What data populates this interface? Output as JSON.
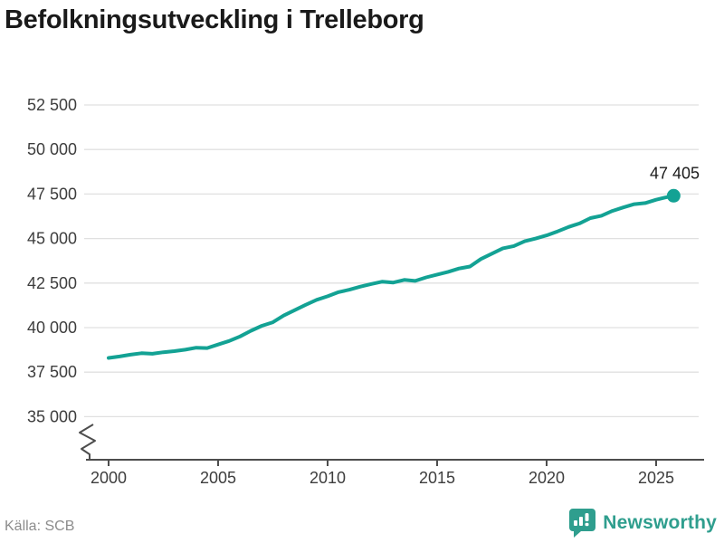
{
  "title": "Befolkningsutveckling i Trelleborg",
  "source": "Källa: SCB",
  "branding": {
    "name": "Newsworthy"
  },
  "colors": {
    "line": "#13a294",
    "grid": "#e0e0e0",
    "axis": "#4d4d4d",
    "tick_label": "#3d3d3d",
    "title": "#1a1a1a",
    "source": "#8c8c8c",
    "brand": "#2f9e8e",
    "end_label": "#1a1a1a"
  },
  "chart_data": {
    "type": "line",
    "title": "Befolkningsutveckling i Trelleborg",
    "xlabel": "",
    "ylabel": "",
    "grid": "horizontal",
    "legend": "none",
    "axis_break_bottom_left": true,
    "xlim": [
      1999.5,
      2026.5
    ],
    "ylim": [
      35000,
      52500
    ],
    "x_ticks": [
      2000,
      2005,
      2010,
      2015,
      2020,
      2025
    ],
    "x_tick_labels": [
      "2000",
      "2005",
      "2010",
      "2015",
      "2020",
      "2025"
    ],
    "y_ticks": [
      52500,
      50000,
      47500,
      45000,
      42500,
      40000,
      37500,
      35000
    ],
    "y_tick_labels": [
      "52 500",
      "50 000",
      "47 500",
      "45 000",
      "42 500",
      "40 000",
      "37 500",
      "35 000"
    ],
    "end_label": "47 405",
    "end_value": 47405,
    "series": [
      {
        "name": "Befolkning",
        "points": [
          [
            2000,
            38300
          ],
          [
            2000.5,
            38380
          ],
          [
            2001,
            38480
          ],
          [
            2001.5,
            38560
          ],
          [
            2002,
            38530
          ],
          [
            2002.5,
            38620
          ],
          [
            2003,
            38680
          ],
          [
            2003.5,
            38760
          ],
          [
            2004,
            38870
          ],
          [
            2004.5,
            38850
          ],
          [
            2005,
            39050
          ],
          [
            2005.5,
            39250
          ],
          [
            2006,
            39500
          ],
          [
            2006.5,
            39820
          ],
          [
            2007,
            40100
          ],
          [
            2007.5,
            40300
          ],
          [
            2008,
            40680
          ],
          [
            2008.5,
            40980
          ],
          [
            2009,
            41280
          ],
          [
            2009.5,
            41560
          ],
          [
            2010,
            41760
          ],
          [
            2010.5,
            41990
          ],
          [
            2011,
            42130
          ],
          [
            2011.5,
            42300
          ],
          [
            2012,
            42450
          ],
          [
            2012.5,
            42580
          ],
          [
            2013,
            42530
          ],
          [
            2013.5,
            42680
          ],
          [
            2014,
            42620
          ],
          [
            2014.5,
            42820
          ],
          [
            2015,
            42980
          ],
          [
            2015.5,
            43130
          ],
          [
            2016,
            43320
          ],
          [
            2016.5,
            43430
          ],
          [
            2017,
            43850
          ],
          [
            2017.5,
            44150
          ],
          [
            2018,
            44450
          ],
          [
            2018.5,
            44580
          ],
          [
            2019,
            44850
          ],
          [
            2019.5,
            45000
          ],
          [
            2020,
            45180
          ],
          [
            2020.5,
            45400
          ],
          [
            2021,
            45650
          ],
          [
            2021.5,
            45850
          ],
          [
            2022,
            46150
          ],
          [
            2022.5,
            46280
          ],
          [
            2023,
            46550
          ],
          [
            2023.5,
            46750
          ],
          [
            2024,
            46930
          ],
          [
            2024.5,
            46990
          ],
          [
            2025,
            47180
          ],
          [
            2025.4,
            47300
          ],
          [
            2025.8,
            47405
          ]
        ]
      }
    ]
  }
}
